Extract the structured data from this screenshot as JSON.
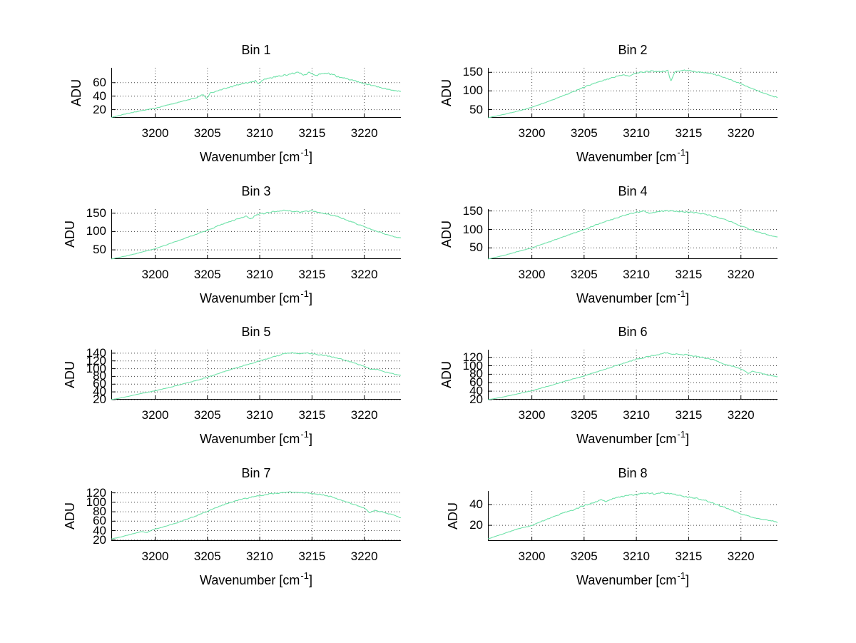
{
  "figure": {
    "background": "#ffffff",
    "line_color": "#6fe2a9",
    "grid_color": "#404040",
    "axis_color": "#000000",
    "ylabel": "ADU",
    "xlabel_pre": "Wavenumber [cm",
    "xlabel_sup": "-1",
    "xlabel_post": "]"
  },
  "chart_data": [
    {
      "type": "line",
      "title": "Bin 1",
      "xlabel": "Wavenumber [cm^-1]",
      "ylabel": "ADU",
      "grid": "on",
      "box": "off",
      "legend": null,
      "xlim": [
        3195.8,
        3223.5
      ],
      "ylim": [
        8,
        82
      ],
      "xticks": [
        3200,
        3205,
        3210,
        3215,
        3220
      ],
      "yticks": [
        20,
        40,
        60
      ],
      "noise": 1.2,
      "points": [
        [
          3195.8,
          8.5
        ],
        [
          3197,
          13
        ],
        [
          3198.5,
          18
        ],
        [
          3200,
          22
        ],
        [
          3201,
          26
        ],
        [
          3202,
          30
        ],
        [
          3203,
          34
        ],
        [
          3204,
          38
        ],
        [
          3204.6,
          43
        ],
        [
          3204.9,
          36
        ],
        [
          3205.3,
          45
        ],
        [
          3206,
          48
        ],
        [
          3207,
          53
        ],
        [
          3208,
          57
        ],
        [
          3209,
          60
        ],
        [
          3209.6,
          63
        ],
        [
          3209.9,
          58
        ],
        [
          3210.4,
          65
        ],
        [
          3211,
          67
        ],
        [
          3212,
          70
        ],
        [
          3213,
          73
        ],
        [
          3213.6,
          75
        ],
        [
          3214.2,
          72
        ],
        [
          3214.8,
          75
        ],
        [
          3215.4,
          71
        ],
        [
          3216,
          73
        ],
        [
          3216.6,
          74
        ],
        [
          3217.4,
          69
        ],
        [
          3218.2,
          66
        ],
        [
          3219,
          63
        ],
        [
          3220,
          59
        ],
        [
          3221,
          55
        ],
        [
          3222,
          51
        ],
        [
          3223,
          48
        ],
        [
          3223.5,
          47
        ]
      ]
    },
    {
      "type": "line",
      "title": "Bin 2",
      "xlabel": "Wavenumber [cm^-1]",
      "ylabel": "ADU",
      "grid": "on",
      "box": "off",
      "legend": null,
      "xlim": [
        3195.8,
        3223.5
      ],
      "ylim": [
        28,
        162
      ],
      "xticks": [
        3200,
        3205,
        3210,
        3215,
        3220
      ],
      "yticks": [
        50,
        100,
        150
      ],
      "noise": 1.6,
      "points": [
        [
          3195.8,
          28
        ],
        [
          3197.5,
          38
        ],
        [
          3199,
          48
        ],
        [
          3200,
          56
        ],
        [
          3201,
          66
        ],
        [
          3202,
          76
        ],
        [
          3203,
          87
        ],
        [
          3204,
          98
        ],
        [
          3205,
          110
        ],
        [
          3206,
          120
        ],
        [
          3207,
          129
        ],
        [
          3208,
          138
        ],
        [
          3208.8,
          144
        ],
        [
          3209.3,
          139
        ],
        [
          3209.9,
          147
        ],
        [
          3210.6,
          151
        ],
        [
          3211.5,
          153
        ],
        [
          3212.4,
          152
        ],
        [
          3213,
          154
        ],
        [
          3213.3,
          127
        ],
        [
          3213.7,
          152
        ],
        [
          3214.5,
          155
        ],
        [
          3215.3,
          153
        ],
        [
          3216.1,
          151
        ],
        [
          3217,
          147
        ],
        [
          3217.8,
          142
        ],
        [
          3218.6,
          134
        ],
        [
          3219.4,
          126
        ],
        [
          3220.2,
          116
        ],
        [
          3221,
          107
        ],
        [
          3222,
          96
        ],
        [
          3223,
          86
        ],
        [
          3223.5,
          82
        ]
      ]
    },
    {
      "type": "line",
      "title": "Bin 3",
      "xlabel": "Wavenumber [cm^-1]",
      "ylabel": "ADU",
      "grid": "on",
      "box": "off",
      "legend": null,
      "xlim": [
        3195.8,
        3223.5
      ],
      "ylim": [
        25,
        161
      ],
      "xticks": [
        3200,
        3205,
        3210,
        3215,
        3220
      ],
      "yticks": [
        50,
        100,
        150
      ],
      "noise": 1.6,
      "points": [
        [
          3195.8,
          25
        ],
        [
          3197.5,
          35
        ],
        [
          3199,
          46
        ],
        [
          3200,
          53
        ],
        [
          3201,
          63
        ],
        [
          3202,
          73
        ],
        [
          3203,
          83
        ],
        [
          3204,
          93
        ],
        [
          3205,
          104
        ],
        [
          3206,
          115
        ],
        [
          3207,
          126
        ],
        [
          3208,
          135
        ],
        [
          3208.7,
          142
        ],
        [
          3209.1,
          133
        ],
        [
          3209.6,
          144
        ],
        [
          3210.2,
          149
        ],
        [
          3211,
          152
        ],
        [
          3211.8,
          155
        ],
        [
          3212.6,
          157
        ],
        [
          3213.4,
          154
        ],
        [
          3214.2,
          153
        ],
        [
          3215,
          156
        ],
        [
          3215.7,
          151
        ],
        [
          3216.4,
          148
        ],
        [
          3217.2,
          143
        ],
        [
          3218,
          135
        ],
        [
          3219,
          124
        ],
        [
          3220,
          113
        ],
        [
          3221,
          103
        ],
        [
          3222,
          93
        ],
        [
          3223,
          85
        ],
        [
          3223.5,
          82
        ]
      ]
    },
    {
      "type": "line",
      "title": "Bin 4",
      "xlabel": "Wavenumber [cm^-1]",
      "ylabel": "ADU",
      "grid": "on",
      "box": "off",
      "legend": null,
      "xlim": [
        3195.8,
        3223.5
      ],
      "ylim": [
        20,
        155
      ],
      "xticks": [
        3200,
        3205,
        3210,
        3215,
        3220
      ],
      "yticks": [
        50,
        100,
        150
      ],
      "noise": 1.5,
      "points": [
        [
          3195.8,
          20
        ],
        [
          3197.5,
          31
        ],
        [
          3199,
          43
        ],
        [
          3200,
          50
        ],
        [
          3201,
          60
        ],
        [
          3202,
          70
        ],
        [
          3203,
          80
        ],
        [
          3204,
          90
        ],
        [
          3205,
          100
        ],
        [
          3206,
          111
        ],
        [
          3207,
          121
        ],
        [
          3208,
          130
        ],
        [
          3209,
          139
        ],
        [
          3210,
          146
        ],
        [
          3210.7,
          149
        ],
        [
          3211.3,
          144
        ],
        [
          3212,
          148
        ],
        [
          3212.8,
          151
        ],
        [
          3213.6,
          149
        ],
        [
          3214.4,
          148
        ],
        [
          3215.2,
          146
        ],
        [
          3216,
          144
        ],
        [
          3216.8,
          140
        ],
        [
          3217.6,
          134
        ],
        [
          3218.4,
          127
        ],
        [
          3219.2,
          119
        ],
        [
          3220,
          110
        ],
        [
          3221,
          99
        ],
        [
          3222,
          90
        ],
        [
          3223,
          82
        ],
        [
          3223.5,
          79
        ]
      ]
    },
    {
      "type": "line",
      "title": "Bin 5",
      "xlabel": "Wavenumber [cm^-1]",
      "ylabel": "ADU",
      "grid": "on",
      "box": "off",
      "legend": null,
      "xlim": [
        3195.8,
        3223.5
      ],
      "ylim": [
        20,
        149
      ],
      "xticks": [
        3200,
        3205,
        3210,
        3215,
        3220
      ],
      "yticks": [
        20,
        40,
        60,
        80,
        100,
        120,
        140
      ],
      "noise": 1.3,
      "points": [
        [
          3195.8,
          20
        ],
        [
          3197,
          26
        ],
        [
          3198.5,
          35
        ],
        [
          3200,
          43
        ],
        [
          3201,
          49
        ],
        [
          3202,
          56
        ],
        [
          3203,
          63
        ],
        [
          3204,
          70
        ],
        [
          3205,
          78
        ],
        [
          3206,
          87
        ],
        [
          3207,
          96
        ],
        [
          3208,
          104
        ],
        [
          3209,
          112
        ],
        [
          3210,
          120
        ],
        [
          3210.8,
          127
        ],
        [
          3211.6,
          133
        ],
        [
          3212.4,
          139
        ],
        [
          3213.1,
          141
        ],
        [
          3213.8,
          139
        ],
        [
          3214.5,
          140
        ],
        [
          3215.2,
          138
        ],
        [
          3216,
          135
        ],
        [
          3216.8,
          131
        ],
        [
          3217.6,
          126
        ],
        [
          3218.4,
          120
        ],
        [
          3219.2,
          113
        ],
        [
          3220,
          106
        ],
        [
          3220.6,
          99
        ],
        [
          3221.2,
          98
        ],
        [
          3222,
          92
        ],
        [
          3223,
          85
        ],
        [
          3223.5,
          82
        ]
      ]
    },
    {
      "type": "line",
      "title": "Bin 6",
      "xlabel": "Wavenumber [cm^-1]",
      "ylabel": "ADU",
      "grid": "on",
      "box": "off",
      "legend": null,
      "xlim": [
        3195.8,
        3223.5
      ],
      "ylim": [
        20,
        138
      ],
      "xticks": [
        3200,
        3205,
        3210,
        3215,
        3220
      ],
      "yticks": [
        20,
        40,
        60,
        80,
        100,
        120
      ],
      "noise": 1.2,
      "points": [
        [
          3195.8,
          20
        ],
        [
          3197,
          25
        ],
        [
          3198.5,
          33
        ],
        [
          3200,
          41
        ],
        [
          3201,
          48
        ],
        [
          3202,
          55
        ],
        [
          3203,
          62
        ],
        [
          3204,
          69
        ],
        [
          3205,
          76
        ],
        [
          3206,
          84
        ],
        [
          3207,
          92
        ],
        [
          3208,
          100
        ],
        [
          3209,
          108
        ],
        [
          3210,
          115
        ],
        [
          3211,
          121
        ],
        [
          3212,
          126
        ],
        [
          3212.7,
          131
        ],
        [
          3213.4,
          128
        ],
        [
          3214.1,
          127
        ],
        [
          3214.8,
          126
        ],
        [
          3215.5,
          123
        ],
        [
          3216.2,
          120
        ],
        [
          3217.3,
          115
        ],
        [
          3218.2,
          106
        ],
        [
          3219,
          100
        ],
        [
          3219.8,
          95
        ],
        [
          3220.4,
          88
        ],
        [
          3220.7,
          81
        ],
        [
          3221.1,
          87
        ],
        [
          3221.8,
          83
        ],
        [
          3222.6,
          78
        ],
        [
          3223.5,
          74
        ]
      ]
    },
    {
      "type": "line",
      "title": "Bin 7",
      "xlabel": "Wavenumber [cm^-1]",
      "ylabel": "ADU",
      "grid": "on",
      "box": "off",
      "legend": null,
      "xlim": [
        3195.8,
        3223.5
      ],
      "ylim": [
        18,
        124
      ],
      "xticks": [
        3200,
        3205,
        3210,
        3215,
        3220
      ],
      "yticks": [
        20,
        40,
        60,
        80,
        100,
        120
      ],
      "noise": 1.1,
      "points": [
        [
          3195.8,
          22
        ],
        [
          3196.8,
          27
        ],
        [
          3197.8,
          33
        ],
        [
          3198.7,
          38
        ],
        [
          3199.2,
          36
        ],
        [
          3199.8,
          42
        ],
        [
          3200.8,
          48
        ],
        [
          3202,
          56
        ],
        [
          3203,
          64
        ],
        [
          3204,
          72
        ],
        [
          3205,
          81
        ],
        [
          3206,
          90
        ],
        [
          3207,
          98
        ],
        [
          3208,
          105
        ],
        [
          3209,
          110
        ],
        [
          3210,
          114
        ],
        [
          3211,
          118
        ],
        [
          3212,
          120
        ],
        [
          3212.8,
          122
        ],
        [
          3213.6,
          121
        ],
        [
          3214.4,
          120
        ],
        [
          3215.2,
          118
        ],
        [
          3216,
          116
        ],
        [
          3216.8,
          112
        ],
        [
          3217.6,
          106
        ],
        [
          3218.4,
          100
        ],
        [
          3219.2,
          94
        ],
        [
          3219.8,
          89
        ],
        [
          3220.2,
          85
        ],
        [
          3220.5,
          77
        ],
        [
          3221,
          83
        ],
        [
          3221.8,
          79
        ],
        [
          3222.8,
          73
        ],
        [
          3223.5,
          67
        ]
      ]
    },
    {
      "type": "line",
      "title": "Bin 8",
      "xlabel": "Wavenumber [cm^-1]",
      "ylabel": "ADU",
      "grid": "on",
      "box": "off",
      "legend": null,
      "xlim": [
        3195.8,
        3223.5
      ],
      "ylim": [
        5,
        53
      ],
      "xticks": [
        3200,
        3205,
        3210,
        3215,
        3220
      ],
      "yticks": [
        20,
        40
      ],
      "noise": 0.7,
      "points": [
        [
          3195.8,
          7
        ],
        [
          3197,
          11
        ],
        [
          3198.5,
          16
        ],
        [
          3200,
          20
        ],
        [
          3201,
          24
        ],
        [
          3202,
          28
        ],
        [
          3203,
          32
        ],
        [
          3204,
          35
        ],
        [
          3205,
          39
        ],
        [
          3206,
          42
        ],
        [
          3206.6,
          45
        ],
        [
          3207.1,
          43
        ],
        [
          3207.8,
          46
        ],
        [
          3208.6,
          48
        ],
        [
          3209.4,
          49
        ],
        [
          3210.2,
          50
        ],
        [
          3211,
          51
        ],
        [
          3211.8,
          50
        ],
        [
          3212.6,
          51
        ],
        [
          3213.4,
          50
        ],
        [
          3214.2,
          49
        ],
        [
          3215,
          47
        ],
        [
          3215.8,
          46
        ],
        [
          3216.6,
          44
        ],
        [
          3217.4,
          41
        ],
        [
          3218.2,
          38
        ],
        [
          3219,
          35
        ],
        [
          3220,
          31
        ],
        [
          3221,
          28
        ],
        [
          3222,
          26
        ],
        [
          3223,
          24
        ],
        [
          3223.5,
          23
        ]
      ]
    }
  ]
}
